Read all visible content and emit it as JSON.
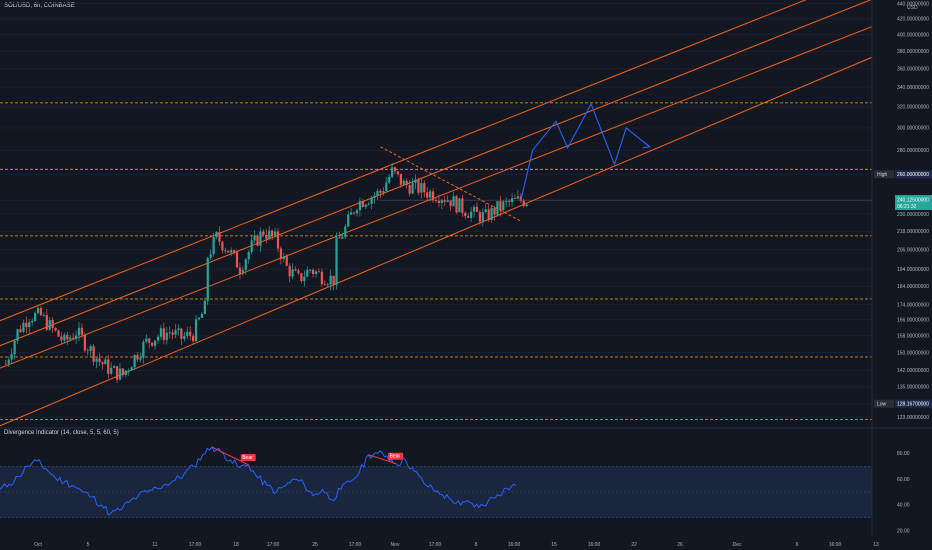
{
  "header": {
    "symbol_title": "SOL/USD, 6h, COINBASE",
    "currency": "USD"
  },
  "indicator": {
    "title": "Divergence Indicator (14, close, 5, 5, 60, 5)",
    "labels": [
      "Bear",
      "Bear"
    ],
    "y_ticks": [
      "80.00",
      "60.00",
      "40.00",
      "20.00"
    ]
  },
  "price_axis": {
    "ticks": [
      "440.00000000",
      "420.00000000",
      "400.00000000",
      "380.00000000",
      "360.00000000",
      "340.00000000",
      "320.00000000",
      "300.00000000",
      "280.00000000",
      "260.00000000",
      "240.00000000",
      "230.00000000",
      "218.00000000",
      "206.00000000",
      "194.00000000",
      "184.00000000",
      "174.00000000",
      "166.00000000",
      "158.00000000",
      "150.00000000",
      "142.00000000",
      "135.00000000",
      "128.00000000",
      "123.00000000"
    ],
    "high_label": "High",
    "high_value": "260.00000000",
    "low_label": "Low",
    "low_value": "128.16700000",
    "current_price": "240.12500000",
    "countdown": "06:21:32"
  },
  "time_axis": {
    "labels": [
      "Oct",
      "5",
      "11",
      "17:00",
      "18",
      "17:00",
      "25",
      "17:00",
      "Nov",
      "17:00",
      "8",
      "16:00",
      "15",
      "16:00",
      "22",
      "26",
      "Dec",
      "6",
      "16:00",
      "13"
    ]
  },
  "colors": {
    "background": "#131722",
    "up_candle": "#26a69a",
    "down_candle": "#ef5350",
    "channel": "#f7631b",
    "horizontal_levels": "#f0a30a",
    "projection": "#2962ff",
    "oscillator": "#2962ff",
    "bear_label": "#f23645",
    "osc_band": "#1e3050"
  },
  "chart_data": [
    {
      "type": "candlestick",
      "title": "SOL/USD, 6h, COINBASE",
      "ylabel": "USD",
      "scale": "log",
      "ylim": [
        120,
        445
      ],
      "x_range": [
        "Oct 1",
        "Dec 14"
      ],
      "horizontal_levels": [
        324,
        264,
        215,
        177,
        148,
        122
      ],
      "channel_lines": [
        {
          "from": [
            "Sep 29",
            162
          ],
          "to": [
            "Dec 14",
            483
          ]
        },
        {
          "from": [
            "Sep 29",
            150
          ],
          "to": [
            "Dec 14",
            446
          ]
        },
        {
          "from": [
            "Sep 29",
            140
          ],
          "to": [
            "Dec 14",
            410
          ]
        },
        {
          "from": [
            "Sep 29",
            117
          ],
          "to": [
            "Dec 14",
            373
          ]
        }
      ],
      "descending_line": {
        "from": [
          "Nov 2",
          283
        ],
        "to": [
          "Nov 14",
          225
        ]
      },
      "mid_level": 240,
      "candles_path": [
        [
          "Oct 1",
          132
        ],
        [
          "Oct 1",
          145
        ],
        [
          "Oct 2",
          160
        ],
        [
          "Oct 3",
          168
        ],
        [
          "Oct 4",
          168
        ],
        [
          "Oct 5",
          161
        ],
        [
          "Oct 6",
          155
        ],
        [
          "Oct 7",
          160
        ],
        [
          "Oct 8",
          153
        ],
        [
          "Oct 9",
          146
        ],
        [
          "Oct 10",
          142
        ],
        [
          "Oct 11",
          140
        ],
        [
          "Oct 12",
          148
        ],
        [
          "Oct 13",
          155
        ],
        [
          "Oct 14",
          158
        ],
        [
          "Oct 15",
          160
        ],
        [
          "Oct 16",
          157
        ],
        [
          "Oct 17",
          159
        ],
        [
          "Oct 18",
          172
        ],
        [
          "Oct 18",
          198
        ],
        [
          "Oct 19",
          214
        ],
        [
          "Oct 20",
          206
        ],
        [
          "Oct 21",
          195
        ],
        [
          "Oct 22",
          208
        ],
        [
          "Oct 23",
          218
        ],
        [
          "Oct 24",
          213
        ],
        [
          "Oct 25",
          195
        ],
        [
          "Oct 26",
          188
        ],
        [
          "Oct 27",
          194
        ],
        [
          "Oct 28",
          190
        ],
        [
          "Oct 29",
          188
        ],
        [
          "Oct 29",
          205
        ],
        [
          "Oct 30",
          220
        ],
        [
          "Oct 31",
          238
        ],
        [
          "Nov 1",
          242
        ],
        [
          "Nov 2",
          246
        ],
        [
          "Nov 3",
          262
        ],
        [
          "Nov 4",
          252
        ],
        [
          "Nov 5",
          250
        ],
        [
          "Nov 6",
          246
        ],
        [
          "Nov 7",
          244
        ],
        [
          "Nov 8",
          240
        ],
        [
          "Nov 9",
          234
        ],
        [
          "Nov 10",
          230
        ],
        [
          "Nov 11",
          228
        ],
        [
          "Nov 12",
          234
        ],
        [
          "Nov 13",
          238
        ],
        [
          "Nov 14",
          240
        ]
      ],
      "projection_path": [
        [
          "Nov 14",
          240
        ],
        [
          "Nov 15",
          280
        ],
        [
          "Nov 17",
          306
        ],
        [
          "Nov 18",
          282
        ],
        [
          "Nov 20",
          323
        ],
        [
          "Nov 22",
          268
        ],
        [
          "Nov 23",
          300
        ],
        [
          "Nov 25",
          283
        ]
      ],
      "current_price": 240.125,
      "high": 260,
      "low": 128.167
    },
    {
      "type": "line",
      "title": "Divergence Indicator (14, close, 5, 5, 60, 5)",
      "ylim": [
        15,
        92
      ],
      "band": [
        30,
        70
      ],
      "midline": 50,
      "values": [
        52,
        56,
        62,
        70,
        74,
        68,
        61,
        58,
        55,
        50,
        46,
        40,
        33,
        36,
        42,
        47,
        50,
        53,
        56,
        59,
        64,
        70,
        79,
        85,
        81,
        75,
        69,
        71,
        61,
        55,
        50,
        55,
        60,
        56,
        47,
        52,
        44,
        52,
        58,
        65,
        79,
        80,
        78,
        72,
        75,
        66,
        57,
        52,
        48,
        44,
        40,
        42,
        38,
        43,
        48,
        53,
        55
      ],
      "annotations": [
        {
          "label": "Bear",
          "from_index": 23,
          "to_index": 27
        },
        {
          "label": "Bear",
          "from_index": 40,
          "to_index": 43
        }
      ]
    }
  ]
}
